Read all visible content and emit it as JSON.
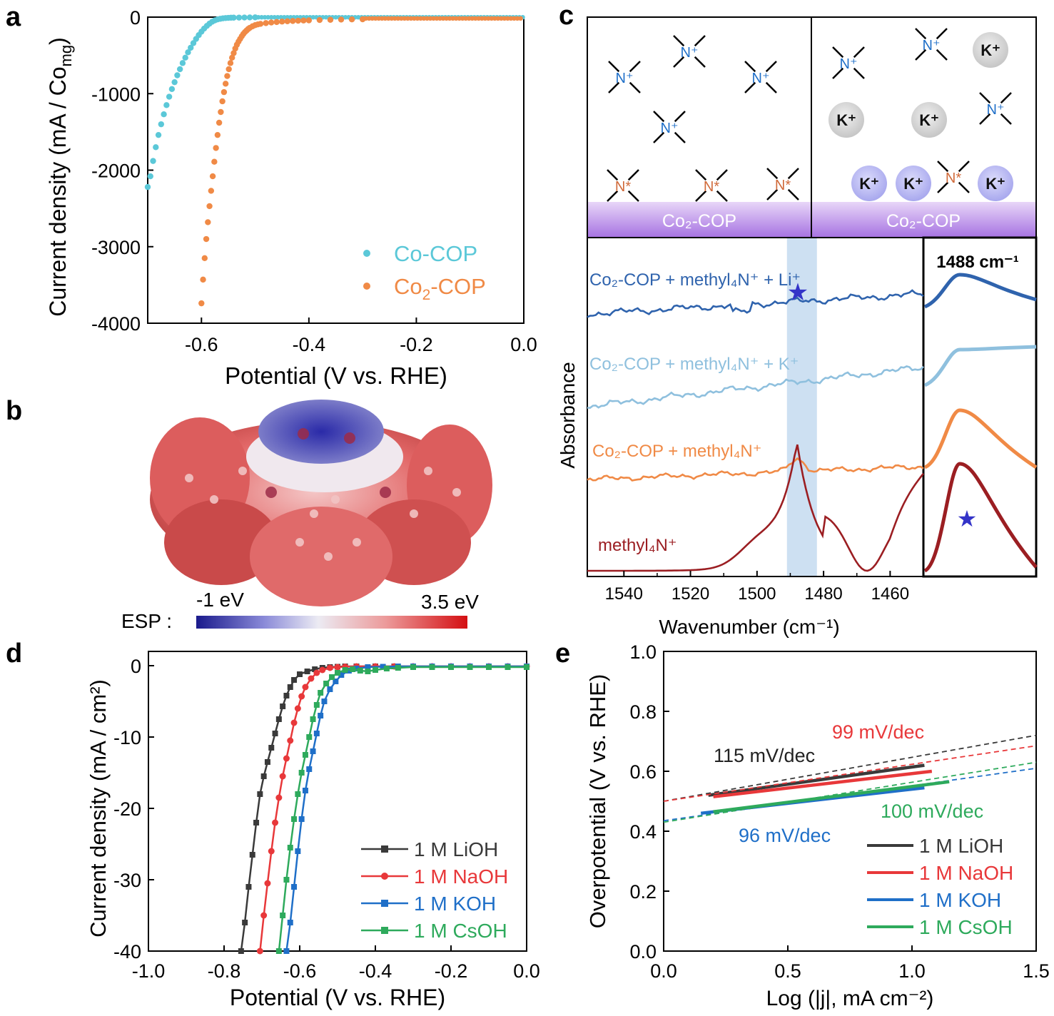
{
  "panels": {
    "a": {
      "letter": "a",
      "xlabel": "Potential (V vs. RHE)",
      "ylabel_main": "Current density (mA / Co",
      "ylabel_sub": "mg",
      "ylabel_end": ")",
      "xticks": [
        "-0.6",
        "-0.4",
        "-0.2",
        "0.0"
      ],
      "yticks": [
        "0",
        "-1000",
        "-2000",
        "-3000",
        "-4000"
      ],
      "legend": [
        {
          "name": "Co-COP",
          "color": "#5bc8d8"
        },
        {
          "name_main": "Co",
          "name_sub": "2",
          "name_end": "-COP",
          "color": "#f08a46"
        }
      ]
    },
    "b": {
      "letter": "b",
      "esp_label": "ESP :",
      "min_label": "-1 eV",
      "max_label": "3.5 eV"
    },
    "c": {
      "letter": "c",
      "substrate_label": "Co₂-COP",
      "ion_n": "N⁺",
      "ion_k": "K⁺",
      "ion_nstar": "N*",
      "ylabel": "Absorbance",
      "xlabel": "Wavenumber (cm⁻¹)",
      "inset_label": "1488 cm⁻¹",
      "xticks": [
        "1540",
        "1520",
        "1500",
        "1480",
        "1460"
      ],
      "series_labels": [
        {
          "text": "Co₂-COP + methyl₄N⁺ + Li⁺",
          "color": "#2f63ad"
        },
        {
          "text": "Co₂-COP + methyl₄N⁺ + K⁺",
          "color": "#8fc0de"
        },
        {
          "text": "Co₂-COP + methyl₄N⁺",
          "color": "#f08a46"
        },
        {
          "text": "methyl₄N⁺",
          "color": "#9b1e22"
        }
      ]
    },
    "d": {
      "letter": "d",
      "xlabel": "Potential (V vs. RHE)",
      "ylabel": "Current density (mA / cm²)",
      "xticks": [
        "-1.0",
        "-0.8",
        "-0.6",
        "-0.4",
        "-0.2",
        "0.0"
      ],
      "yticks": [
        "0",
        "-10",
        "-20",
        "-30",
        "-40"
      ]
    },
    "e": {
      "letter": "e",
      "xlabel": "Log (|j|, mA cm⁻²)",
      "ylabel": "Overpotential (V vs. RHE)",
      "xticks": [
        "0.0",
        "0.5",
        "1.0",
        "1.5"
      ],
      "yticks": [
        "0.0",
        "0.2",
        "0.4",
        "0.6",
        "0.8",
        "1.0"
      ],
      "annotations": [
        {
          "text": "115 mV/dec",
          "color": "#222222"
        },
        {
          "text": "99 mV/dec",
          "color": "#e8383a"
        },
        {
          "text": "100 mV/dec",
          "color": "#2eaa5c"
        },
        {
          "text": "96 mV/dec",
          "color": "#1f6fc8"
        }
      ]
    }
  },
  "chart_data": [
    {
      "panel": "a",
      "type": "scatter",
      "xlabel": "Potential (V vs. RHE)",
      "ylabel": "Current density (mA / Comg)",
      "xlim": [
        -0.7,
        0.0
      ],
      "ylim": [
        -4000,
        0
      ],
      "series": [
        {
          "name": "Co-COP",
          "color": "#5bc8d8",
          "x": [
            -0.7,
            -0.695,
            -0.69,
            -0.685,
            -0.68,
            -0.675,
            -0.67,
            -0.665,
            -0.66,
            -0.655,
            -0.65,
            -0.645,
            -0.64,
            -0.635,
            -0.63,
            -0.625,
            -0.62,
            -0.615,
            -0.61,
            -0.605,
            -0.6,
            -0.595,
            -0.59,
            -0.585,
            -0.58,
            -0.575,
            -0.57,
            -0.565,
            -0.56,
            -0.555,
            -0.55,
            -0.545,
            -0.54,
            -0.53,
            -0.52,
            -0.51,
            -0.5
          ],
          "y": [
            -2220,
            -2080,
            -1880,
            -1700,
            -1540,
            -1400,
            -1270,
            -1150,
            -1040,
            -940,
            -850,
            -760,
            -680,
            -600,
            -530,
            -460,
            -400,
            -340,
            -285,
            -235,
            -190,
            -150,
            -115,
            -85,
            -60,
            -42,
            -30,
            -22,
            -16,
            -12,
            -10,
            -8,
            -7,
            -6,
            -5,
            -4,
            -3
          ]
        },
        {
          "name": "Co2-COP",
          "color": "#f08a46",
          "x": [
            -0.6,
            -0.597,
            -0.594,
            -0.591,
            -0.588,
            -0.585,
            -0.582,
            -0.579,
            -0.576,
            -0.573,
            -0.57,
            -0.567,
            -0.564,
            -0.561,
            -0.558,
            -0.555,
            -0.552,
            -0.549,
            -0.546,
            -0.543,
            -0.54,
            -0.537,
            -0.534,
            -0.531,
            -0.528,
            -0.525,
            -0.522,
            -0.519,
            -0.516,
            -0.513,
            -0.51,
            -0.505,
            -0.5,
            -0.495,
            -0.49,
            -0.48,
            -0.47,
            -0.46,
            -0.45,
            -0.44,
            -0.43,
            -0.42,
            -0.41,
            -0.4,
            -0.38,
            -0.36,
            -0.34,
            -0.32,
            -0.3
          ],
          "y": [
            -3740,
            -3430,
            -3150,
            -2900,
            -2680,
            -2470,
            -2270,
            -2080,
            -1890,
            -1710,
            -1540,
            -1380,
            -1240,
            -1100,
            -980,
            -870,
            -770,
            -680,
            -600,
            -530,
            -470,
            -410,
            -360,
            -320,
            -285,
            -250,
            -220,
            -195,
            -175,
            -155,
            -140,
            -120,
            -105,
            -95,
            -88,
            -78,
            -70,
            -64,
            -58,
            -54,
            -50,
            -47,
            -44,
            -42,
            -38,
            -35,
            -32,
            -30,
            -28
          ]
        }
      ]
    },
    {
      "panel": "c",
      "type": "line",
      "xlabel": "Wavenumber (cm-1)",
      "ylabel": "Absorbance",
      "xlim": [
        1551,
        1450
      ],
      "series": [
        {
          "name": "Co2-COP + methyl4N+ + Li+",
          "color": "#2f63ad"
        },
        {
          "name": "Co2-COP + methyl4N+ + K+",
          "color": "#8fc0de"
        },
        {
          "name": "Co2-COP + methyl4N+",
          "color": "#f08a46"
        },
        {
          "name": "methyl4N+",
          "color": "#9b1e22"
        }
      ],
      "highlight_band": [
        1491,
        1482
      ]
    },
    {
      "panel": "d",
      "type": "line",
      "xlabel": "Potential (V vs. RHE)",
      "ylabel": "Current density (mA / cm2)",
      "xlim": [
        -1.0,
        0.0
      ],
      "ylim": [
        -40,
        0
      ],
      "series": [
        {
          "name": "1 M LiOH",
          "color": "#3a3a3a",
          "marker": "square",
          "x": [
            -0.755,
            -0.745,
            -0.735,
            -0.725,
            -0.715,
            -0.705,
            -0.695,
            -0.685,
            -0.675,
            -0.665,
            -0.655,
            -0.645,
            -0.635,
            -0.625,
            -0.615,
            -0.6,
            -0.58,
            -0.56,
            -0.54,
            -0.52,
            -0.5,
            -0.48,
            -0.45,
            -0.4,
            -0.35,
            -0.3,
            -0.25,
            -0.2,
            -0.15,
            -0.1,
            -0.05,
            0.0
          ],
          "y": [
            -40,
            -36,
            -31,
            -26.5,
            -22,
            -18,
            -15.5,
            -13.5,
            -11.5,
            -9.5,
            -7.5,
            -5.7,
            -4.2,
            -3.0,
            -2.0,
            -1.2,
            -0.8,
            -0.5,
            -0.3,
            -0.2,
            -0.15,
            -0.1,
            -0.1,
            -0.1,
            -0.1,
            -0.1,
            -0.1,
            -0.1,
            -0.1,
            -0.1,
            -0.1,
            -0.1
          ]
        },
        {
          "name": "1 M NaOH",
          "color": "#e8383a",
          "marker": "circle",
          "x": [
            -0.705,
            -0.695,
            -0.685,
            -0.675,
            -0.665,
            -0.655,
            -0.645,
            -0.635,
            -0.625,
            -0.615,
            -0.605,
            -0.595,
            -0.585,
            -0.57,
            -0.555,
            -0.54,
            -0.52,
            -0.5,
            -0.48,
            -0.45,
            -0.4,
            -0.35,
            -0.3,
            -0.25,
            -0.2,
            -0.15,
            -0.1,
            -0.05,
            0.0
          ],
          "y": [
            -40,
            -35,
            -30.5,
            -26,
            -22,
            -18.5,
            -15.5,
            -13,
            -10.5,
            -8,
            -6,
            -4.3,
            -3.0,
            -1.8,
            -1.0,
            -0.6,
            -0.3,
            -0.2,
            -0.15,
            -0.1,
            -0.1,
            -0.1,
            -0.1,
            -0.1,
            -0.1,
            -0.1,
            -0.1,
            -0.1,
            -0.1
          ]
        },
        {
          "name": "1 M KOH",
          "color": "#1f6fc8",
          "marker": "square",
          "x": [
            -0.635,
            -0.625,
            -0.615,
            -0.605,
            -0.595,
            -0.585,
            -0.575,
            -0.565,
            -0.555,
            -0.545,
            -0.535,
            -0.52,
            -0.505,
            -0.49,
            -0.47,
            -0.45,
            -0.42,
            -0.38,
            -0.34,
            -0.3,
            -0.25,
            -0.2,
            -0.15,
            -0.1,
            -0.05,
            0.0
          ],
          "y": [
            -40,
            -36,
            -31,
            -26,
            -21.5,
            -17.5,
            -14.5,
            -12,
            -9.5,
            -7,
            -5,
            -3.3,
            -2.2,
            -1.3,
            -0.7,
            -0.4,
            -0.2,
            -0.15,
            -0.1,
            -0.1,
            -0.1,
            -0.1,
            -0.1,
            -0.1,
            -0.1,
            -0.1
          ]
        },
        {
          "name": "1 M CsOH",
          "color": "#2eaa5c",
          "marker": "square",
          "x": [
            -0.655,
            -0.645,
            -0.635,
            -0.625,
            -0.615,
            -0.605,
            -0.595,
            -0.585,
            -0.575,
            -0.565,
            -0.555,
            -0.545,
            -0.53,
            -0.515,
            -0.5,
            -0.48,
            -0.46,
            -0.44,
            -0.42,
            -0.4,
            -0.37,
            -0.34,
            -0.3,
            -0.25,
            -0.2,
            -0.15,
            -0.1,
            -0.05,
            0.0
          ],
          "y": [
            -40,
            -35,
            -30,
            -25.5,
            -21.5,
            -18,
            -15,
            -12.5,
            -10,
            -7.5,
            -5.5,
            -3.8,
            -2.5,
            -1.6,
            -1.0,
            -0.6,
            -0.5,
            -0.7,
            -0.8,
            -0.6,
            -0.4,
            -0.3,
            -0.2,
            -0.2,
            -0.2,
            -0.2,
            -0.2,
            -0.2,
            -0.2
          ]
        }
      ]
    },
    {
      "panel": "e",
      "type": "line",
      "xlabel": "Log (|j|, mA cm-2)",
      "ylabel": "Overpotential (V vs. RHE)",
      "xlim": [
        0.0,
        1.5
      ],
      "ylim": [
        0.0,
        1.0
      ],
      "series": [
        {
          "name": "1 M LiOH",
          "color": "#3a3a3a",
          "slope_mV_dec": 115,
          "x": [
            0.18,
            1.05
          ],
          "y": [
            0.52,
            0.62
          ],
          "fit_x": [
            0.0,
            1.5
          ],
          "fit_y": [
            0.5,
            0.72
          ]
        },
        {
          "name": "1 M NaOH",
          "color": "#e8383a",
          "slope_mV_dec": 99,
          "x": [
            0.2,
            1.08
          ],
          "y": [
            0.515,
            0.6
          ],
          "fit_x": [
            0.0,
            1.5
          ],
          "fit_y": [
            0.5,
            0.685
          ]
        },
        {
          "name": "1 M KOH",
          "color": "#1f6fc8",
          "slope_mV_dec": 96,
          "x": [
            0.15,
            1.05
          ],
          "y": [
            0.46,
            0.545
          ],
          "fit_x": [
            0.0,
            1.5
          ],
          "fit_y": [
            0.435,
            0.61
          ]
        },
        {
          "name": "1 M CsOH",
          "color": "#2eaa5c",
          "slope_mV_dec": 100,
          "x": [
            0.2,
            1.15
          ],
          "y": [
            0.465,
            0.565
          ],
          "fit_x": [
            0.0,
            1.5
          ],
          "fit_y": [
            0.43,
            0.63
          ]
        }
      ]
    }
  ]
}
